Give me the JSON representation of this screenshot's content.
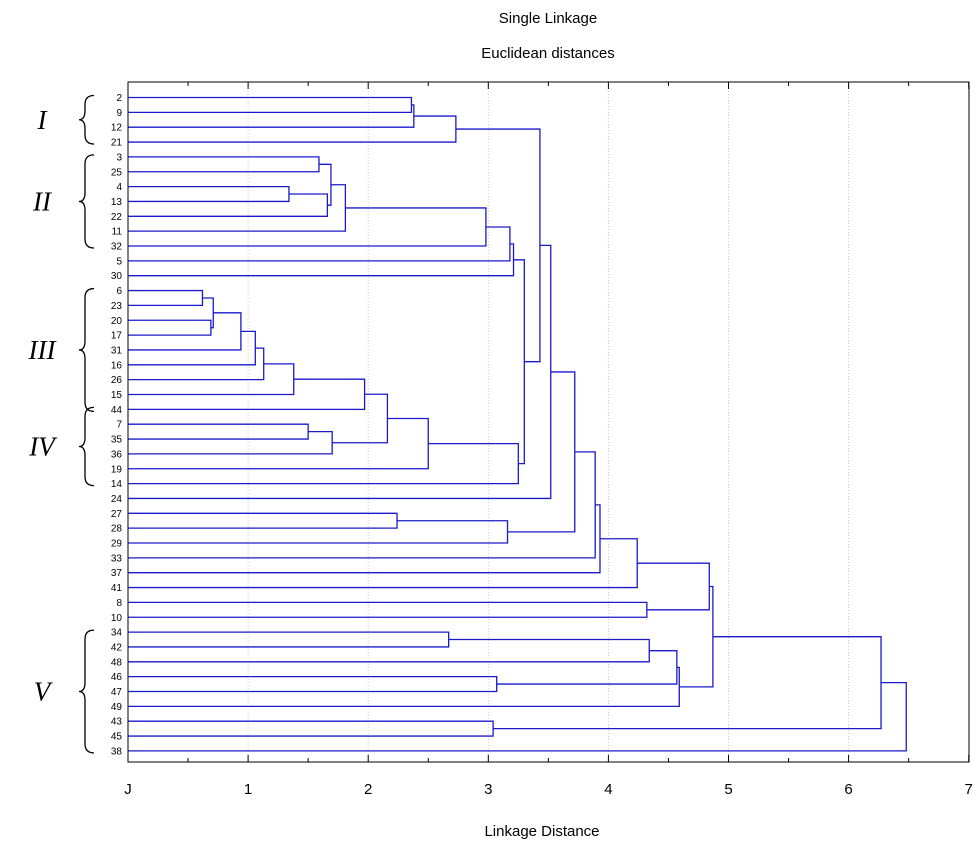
{
  "chart_data": {
    "type": "dendrogram",
    "title": "Single Linkage",
    "subtitle": "Euclidean distances",
    "xlabel": "Linkage Distance",
    "xlim": [
      0,
      7
    ],
    "x_ticks": [
      0,
      1,
      2,
      3,
      4,
      5,
      6,
      7
    ],
    "x_tick_labels": [
      "J",
      "1",
      "2",
      "3",
      "4",
      "5",
      "6",
      "7"
    ],
    "grid": "vertical dotted",
    "line_color": "#1a1acc",
    "leaves": [
      "2",
      "9",
      "12",
      "21",
      "3",
      "25",
      "4",
      "13",
      "22",
      "11",
      "32",
      "5",
      "30",
      "6",
      "23",
      "20",
      "17",
      "31",
      "16",
      "26",
      "15",
      "44",
      "7",
      "35",
      "36",
      "19",
      "14",
      "24",
      "27",
      "28",
      "29",
      "33",
      "37",
      "41",
      "8",
      "10",
      "34",
      "42",
      "48",
      "46",
      "47",
      "49",
      "43",
      "45",
      "38"
    ],
    "merges": [
      {
        "a": "6",
        "b": "23",
        "h": 0.62
      },
      {
        "a": "20",
        "b": "17",
        "h": 0.69
      },
      {
        "a": "m1",
        "b": "m2",
        "h": 0.71
      },
      {
        "a": "m3",
        "b": "31",
        "h": 0.94
      },
      {
        "a": "m4",
        "b": "16",
        "h": 1.06
      },
      {
        "a": "m5",
        "b": "26",
        "h": 1.13
      },
      {
        "a": "m6",
        "b": "15",
        "h": 1.38
      },
      {
        "a": "m7",
        "b": "44",
        "h": 1.97
      },
      {
        "a": "4",
        "b": "13",
        "h": 1.34
      },
      {
        "a": "7",
        "b": "35",
        "h": 1.5
      },
      {
        "a": "3",
        "b": "25",
        "h": 1.59
      },
      {
        "a": "m9",
        "b": "22",
        "h": 1.66
      },
      {
        "a": "m11",
        "b": "m12",
        "h": 1.69
      },
      {
        "a": "m10",
        "b": "36",
        "h": 1.7
      },
      {
        "a": "m13",
        "b": "11",
        "h": 1.81
      },
      {
        "a": "m8",
        "b": "m14",
        "h": 2.16
      },
      {
        "a": "27",
        "b": "28",
        "h": 2.24
      },
      {
        "a": "2",
        "b": "9",
        "h": 2.36
      },
      {
        "a": "m18",
        "b": "12",
        "h": 2.38
      },
      {
        "a": "m16",
        "b": "19",
        "h": 2.5
      },
      {
        "a": "34",
        "b": "42",
        "h": 2.67
      },
      {
        "a": "m19",
        "b": "21",
        "h": 2.73
      },
      {
        "a": "m15",
        "b": "32",
        "h": 2.98
      },
      {
        "a": "43",
        "b": "45",
        "h": 3.04
      },
      {
        "a": "46",
        "b": "47",
        "h": 3.07
      },
      {
        "a": "m17",
        "b": "29",
        "h": 3.16
      },
      {
        "a": "m23",
        "b": "5",
        "h": 3.18
      },
      {
        "a": "m27",
        "b": "30",
        "h": 3.21
      },
      {
        "a": "m20",
        "b": "14",
        "h": 3.25
      },
      {
        "a": "m28",
        "b": "m29",
        "h": 3.3
      },
      {
        "a": "m22",
        "b": "m30",
        "h": 3.43
      },
      {
        "a": "m31",
        "b": "24",
        "h": 3.52
      },
      {
        "a": "m32",
        "b": "m26",
        "h": 3.72
      },
      {
        "a": "m33",
        "b": "33",
        "h": 3.89
      },
      {
        "a": "m34",
        "b": "37",
        "h": 3.93
      },
      {
        "a": "m35",
        "b": "41",
        "h": 4.24
      },
      {
        "a": "8",
        "b": "10",
        "h": 4.32
      },
      {
        "a": "m21",
        "b": "48",
        "h": 4.34
      },
      {
        "a": "m38",
        "b": "m25",
        "h": 4.57
      },
      {
        "a": "m39",
        "b": "49",
        "h": 4.59
      },
      {
        "a": "m36",
        "b": "m37",
        "h": 4.84
      },
      {
        "a": "m41",
        "b": "m40",
        "h": 4.87
      },
      {
        "a": "m24",
        "b": "m42",
        "h": 6.27
      },
      {
        "a": "m43",
        "b": "38",
        "h": 6.48
      }
    ],
    "group_labels": [
      {
        "label": "I",
        "leaves": [
          "2",
          "21"
        ]
      },
      {
        "label": "II",
        "leaves": [
          "3",
          "32"
        ]
      },
      {
        "label": "III",
        "leaves": [
          "6",
          "44"
        ]
      },
      {
        "label": "IV",
        "leaves": [
          "44",
          "14"
        ]
      },
      {
        "label": "V",
        "leaves": [
          "34",
          "38"
        ]
      }
    ]
  }
}
